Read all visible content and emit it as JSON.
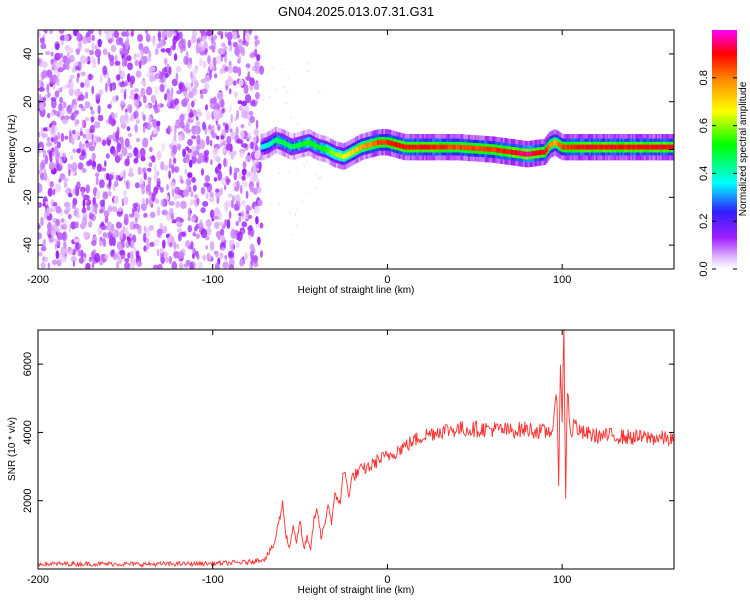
{
  "figure": {
    "title": "GN04.2025.013.07.31.G31"
  },
  "chart_data": [
    {
      "type": "heatmap",
      "xlabel": "Height of straight line (km)",
      "ylabel": "Frequency (Hz)",
      "xlim": [
        -200,
        164
      ],
      "ylim": [
        -50,
        50
      ],
      "xticks": [
        -200,
        -100,
        0,
        100
      ],
      "yticks": [
        -40,
        -20,
        0,
        20,
        40
      ],
      "colorbar": {
        "label": "Normalized spectral amplitude",
        "range": [
          0,
          1
        ],
        "ticks": [
          0.0,
          0.2,
          0.4,
          0.6,
          0.8
        ]
      },
      "regions": [
        {
          "description": "broadband noise",
          "x_range": [
            -200,
            -72
          ],
          "amplitude": 0.05
        },
        {
          "description": "signal band near 0 Hz",
          "x_range": [
            -72,
            164
          ],
          "freq_center": 0,
          "amplitude_range": [
            0.3,
            0.95
          ]
        }
      ],
      "ridge": {
        "x": [
          -72,
          -68,
          -64,
          -60,
          -55,
          -50,
          -45,
          -40,
          -35,
          -30,
          -25,
          -20,
          -15,
          -10,
          -5,
          0,
          5,
          10,
          20,
          40,
          60,
          70,
          80,
          90,
          93,
          96,
          100,
          110,
          130,
          150,
          164
        ],
        "freq": [
          1,
          2,
          4,
          3,
          1,
          2,
          3,
          1,
          0,
          -2,
          -3,
          -1,
          1,
          2,
          3,
          3,
          2,
          1,
          1,
          1,
          0,
          -1,
          -2,
          -1,
          2,
          3,
          1,
          1,
          1,
          1,
          1
        ],
        "amplitude": [
          0.35,
          0.4,
          0.45,
          0.5,
          0.45,
          0.5,
          0.55,
          0.5,
          0.55,
          0.6,
          0.65,
          0.7,
          0.75,
          0.8,
          0.85,
          0.85,
          0.9,
          0.9,
          0.9,
          0.85,
          0.85,
          0.9,
          0.95,
          0.9,
          0.8,
          0.75,
          0.85,
          0.9,
          0.9,
          0.9,
          0.9
        ]
      }
    },
    {
      "type": "line",
      "xlabel": "Height of straight line (km)",
      "ylabel": "SNR (10 * v/v)",
      "xlim": [
        -200,
        164
      ],
      "ylim": [
        0,
        7000
      ],
      "xticks": [
        -200,
        -100,
        0,
        100
      ],
      "yticks": [
        2000,
        4000,
        6000
      ],
      "grid": false,
      "series": [
        {
          "color": "#ff3030",
          "x": [
            -200,
            -180,
            -160,
            -140,
            -120,
            -100,
            -90,
            -80,
            -70,
            -65,
            -60,
            -58,
            -56,
            -54,
            -52,
            -50,
            -48,
            -46,
            -44,
            -42,
            -40,
            -38,
            -36,
            -34,
            -32,
            -30,
            -27,
            -25,
            -22,
            -20,
            -15,
            -10,
            -5,
            0,
            10,
            20,
            30,
            40,
            50,
            60,
            70,
            80,
            90,
            95,
            97,
            98,
            99,
            100,
            101,
            102,
            103,
            105,
            107,
            110,
            120,
            130,
            140,
            150,
            164
          ],
          "y": [
            150,
            150,
            150,
            140,
            150,
            160,
            180,
            200,
            300,
            700,
            1900,
            1000,
            600,
            1300,
            800,
            1400,
            600,
            900,
            500,
            1500,
            1700,
            900,
            1300,
            1900,
            1400,
            2100,
            2000,
            2900,
            2200,
            2700,
            2900,
            3000,
            3200,
            3300,
            3600,
            3900,
            4050,
            4100,
            4100,
            4100,
            4050,
            4100,
            4000,
            4100,
            5200,
            2500,
            6300,
            4200,
            6900,
            2100,
            5300,
            3900,
            4300,
            4000,
            3900,
            3900,
            3850,
            3850,
            3800
          ]
        }
      ]
    }
  ]
}
